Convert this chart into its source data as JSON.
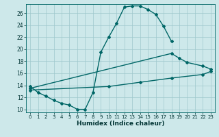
{
  "xlabel": "Humidex (Indice chaleur)",
  "xlim": [
    -0.5,
    23.5
  ],
  "ylim": [
    9.5,
    27.5
  ],
  "xticks": [
    0,
    1,
    2,
    3,
    4,
    5,
    6,
    7,
    8,
    9,
    10,
    11,
    12,
    13,
    14,
    15,
    16,
    17,
    18,
    19,
    20,
    21,
    22,
    23
  ],
  "yticks": [
    10,
    12,
    14,
    16,
    18,
    20,
    22,
    24,
    26
  ],
  "bg_color": "#cde8ea",
  "grid_color": "#9ec8cc",
  "line_color": "#006666",
  "curve1_x": [
    0,
    1,
    2,
    3,
    4,
    5,
    6,
    7,
    8,
    9,
    10,
    11,
    12,
    13,
    14,
    15,
    16,
    17,
    18
  ],
  "curve1_y": [
    13.8,
    12.8,
    12.2,
    11.5,
    11.0,
    10.7,
    10.0,
    10.0,
    12.8,
    19.5,
    22.0,
    24.3,
    27.0,
    27.2,
    27.2,
    26.6,
    25.8,
    23.8,
    21.3
  ],
  "curve2_x": [
    0,
    18,
    19,
    20,
    22,
    23
  ],
  "curve2_y": [
    13.5,
    19.3,
    18.5,
    17.8,
    17.2,
    16.7
  ],
  "curve3_x": [
    0,
    10,
    14,
    18,
    22,
    23
  ],
  "curve3_y": [
    13.2,
    13.8,
    14.5,
    15.2,
    15.8,
    16.3
  ]
}
